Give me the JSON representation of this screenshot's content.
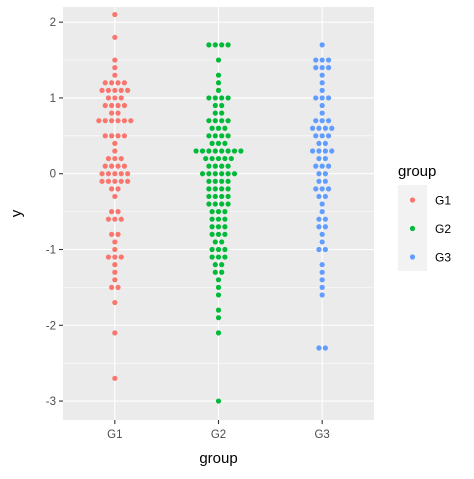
{
  "chart_data": {
    "type": "scatter",
    "subtype": "beeswarm",
    "title": "",
    "xlabel": "group",
    "ylabel": "y",
    "categories": [
      "G1",
      "G2",
      "G3"
    ],
    "ylim": [
      -3.25,
      2.2
    ],
    "y_ticks": [
      -3,
      -2,
      -1,
      0,
      1,
      2
    ],
    "y_tick_labels": [
      "-3",
      "-2",
      "-1",
      "0",
      "1",
      "2"
    ],
    "grid": true,
    "panel_background": "#ebebeb",
    "grid_color": "#ffffff",
    "legend": {
      "title": "group",
      "position": "right",
      "entries": [
        "G1",
        "G2",
        "G3"
      ]
    },
    "colors": {
      "G1": "#F8766D",
      "G2": "#00BA38",
      "G3": "#619CFF"
    },
    "series": [
      {
        "name": "G1",
        "values": [
          2.1,
          1.8,
          1.5,
          1.4,
          1.3,
          1.2,
          1.2,
          1.2,
          1.2,
          1.1,
          1.1,
          1.1,
          1.1,
          1.1,
          1.0,
          1.0,
          1.0,
          0.9,
          0.9,
          0.9,
          0.9,
          0.8,
          0.8,
          0.7,
          0.7,
          0.7,
          0.7,
          0.7,
          0.7,
          0.5,
          0.5,
          0.5,
          0.5,
          0.4,
          0.3,
          0.2,
          0.2,
          0.2,
          0.1,
          0.1,
          0.1,
          0.1,
          0.0,
          0.0,
          0.0,
          0.0,
          0.0,
          -0.1,
          -0.1,
          -0.1,
          -0.1,
          -0.1,
          -0.2,
          -0.2,
          -0.3,
          -0.5,
          -0.5,
          -0.6,
          -0.6,
          -0.6,
          -0.8,
          -0.8,
          -0.9,
          -1.0,
          -1.1,
          -1.1,
          -1.1,
          -1.2,
          -1.3,
          -1.4,
          -1.5,
          -1.5,
          -1.7,
          -2.1,
          -2.7
        ]
      },
      {
        "name": "G2",
        "values": [
          1.7,
          1.7,
          1.7,
          1.7,
          1.5,
          1.3,
          1.2,
          1.1,
          1.0,
          1.0,
          1.0,
          1.0,
          0.9,
          0.9,
          0.8,
          0.8,
          0.7,
          0.7,
          0.7,
          0.7,
          0.6,
          0.6,
          0.6,
          0.5,
          0.5,
          0.5,
          0.5,
          0.4,
          0.4,
          0.4,
          0.3,
          0.3,
          0.3,
          0.3,
          0.3,
          0.3,
          0.3,
          0.3,
          0.2,
          0.2,
          0.2,
          0.2,
          0.2,
          0.1,
          0.1,
          0.1,
          0.1,
          0.0,
          0.0,
          0.0,
          0.0,
          0.0,
          0.0,
          -0.1,
          -0.1,
          -0.1,
          -0.1,
          -0.2,
          -0.2,
          -0.2,
          -0.2,
          -0.3,
          -0.3,
          -0.3,
          -0.3,
          -0.4,
          -0.4,
          -0.4,
          -0.4,
          -0.5,
          -0.5,
          -0.5,
          -0.6,
          -0.6,
          -0.6,
          -0.7,
          -0.7,
          -0.7,
          -0.8,
          -0.8,
          -0.8,
          -0.9,
          -0.9,
          -1.0,
          -1.0,
          -1.0,
          -1.1,
          -1.1,
          -1.1,
          -1.2,
          -1.2,
          -1.3,
          -1.3,
          -1.4,
          -1.5,
          -1.6,
          -1.8,
          -1.9,
          -2.1,
          -3.0
        ]
      },
      {
        "name": "G3",
        "values": [
          1.7,
          1.5,
          1.5,
          1.5,
          1.4,
          1.4,
          1.4,
          1.3,
          1.2,
          1.1,
          1.0,
          1.0,
          1.0,
          0.9,
          0.8,
          0.7,
          0.7,
          0.7,
          0.6,
          0.6,
          0.6,
          0.6,
          0.5,
          0.5,
          0.5,
          0.4,
          0.4,
          0.3,
          0.3,
          0.3,
          0.3,
          0.2,
          0.2,
          0.1,
          0.1,
          0.1,
          0.0,
          0.0,
          -0.1,
          -0.1,
          -0.2,
          -0.2,
          -0.2,
          -0.3,
          -0.3,
          -0.4,
          -0.5,
          -0.6,
          -0.6,
          -0.7,
          -0.7,
          -0.8,
          -0.9,
          -1.0,
          -1.0,
          -1.2,
          -1.3,
          -1.4,
          -1.5,
          -1.6,
          -2.3,
          -2.3
        ]
      }
    ]
  }
}
